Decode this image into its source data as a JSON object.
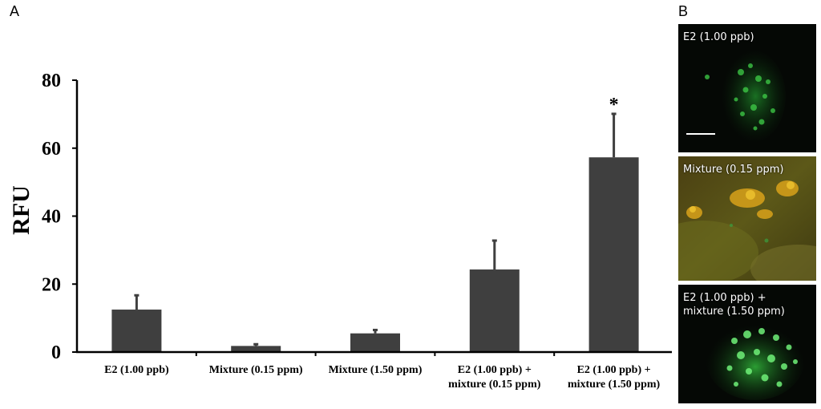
{
  "panel_a_letter": "A",
  "panel_b_letter": "B",
  "chart_data": {
    "type": "bar",
    "ylabel": "RFU",
    "xlabel": "",
    "ylim": [
      0,
      80
    ],
    "yticks": [
      "0",
      "20",
      "40",
      "60",
      "80"
    ],
    "categories": [
      "E2 (1.00 ppb)",
      "Mixture (0.15 ppm)",
      "Mixture (1.50 ppm)",
      "E2 (1.00 ppb) +\nmixture (0.15 ppm)",
      "E2 (1.00 ppb) +\nmixture (1.50 ppm)"
    ],
    "values": [
      12.5,
      1.8,
      5.5,
      24.3,
      57.3
    ],
    "errors": [
      4.2,
      0.5,
      1.0,
      8.5,
      12.8
    ],
    "annotations": [
      {
        "category_index": 4,
        "text": "*"
      }
    ],
    "bar_color": "#3f3f3f",
    "grid": false
  },
  "micrographs": [
    {
      "label": "E2 (1.00 ppb)"
    },
    {
      "label": "Mixture (0.15 ppm)"
    },
    {
      "label": "E2 (1.00 ppb) +\nmixture (1.50 ppm)"
    }
  ]
}
